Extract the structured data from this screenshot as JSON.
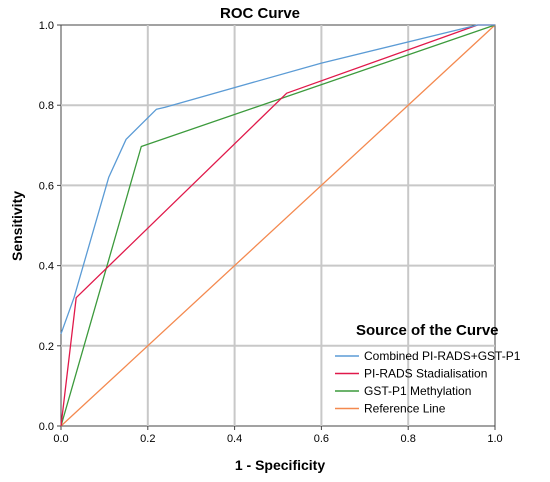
{
  "chart_data": {
    "type": "line",
    "title": "ROC Curve",
    "xlabel": "1 - Specificity",
    "ylabel": "Sensitivity",
    "xlim": [
      0,
      1
    ],
    "ylim": [
      0,
      1
    ],
    "x_ticks": [
      "0.0",
      "0.2",
      "0.4",
      "0.6",
      "0.8",
      "1.0"
    ],
    "y_ticks": [
      "0.0",
      "0.2",
      "0.4",
      "0.6",
      "0.8",
      "1.0"
    ],
    "grid": true,
    "legend": {
      "title": "Source of the Curve",
      "position": "bottom-right"
    },
    "series": [
      {
        "name": "Combined PI-RADS+GST-P1",
        "color": "#5b9bd5",
        "points": [
          [
            0,
            0.23
          ],
          [
            0.03,
            0.32
          ],
          [
            0.11,
            0.62
          ],
          [
            0.15,
            0.715
          ],
          [
            0.22,
            0.79
          ],
          [
            0.24,
            0.795
          ],
          [
            0.6,
            0.905
          ],
          [
            0.96,
            1.0
          ],
          [
            1.0,
            1.0
          ]
        ]
      },
      {
        "name": "PI-RADS Stadialisation",
        "color": "#e0194a",
        "points": [
          [
            0,
            0.0
          ],
          [
            0.035,
            0.32
          ],
          [
            0.52,
            0.83
          ],
          [
            0.96,
            1.0
          ],
          [
            1.0,
            1.0
          ]
        ]
      },
      {
        "name": "GST-P1 Methylation",
        "color": "#3c9a3c",
        "points": [
          [
            0,
            0.0
          ],
          [
            0.185,
            0.697
          ],
          [
            1.0,
            1.0
          ]
        ]
      },
      {
        "name": "Reference Line",
        "color": "#f4894f",
        "points": [
          [
            0,
            0.0
          ],
          [
            1.0,
            1.0
          ]
        ]
      }
    ]
  }
}
